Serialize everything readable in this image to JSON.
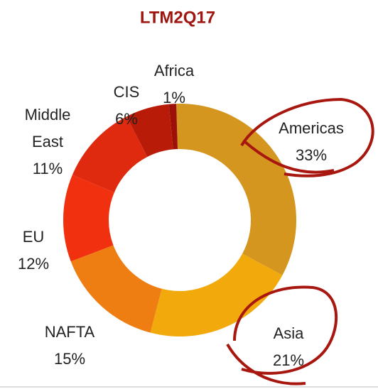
{
  "chart_data": {
    "type": "donut",
    "title": "LTM2Q17",
    "categories": [
      "Americas",
      "Asia",
      "NAFTA",
      "EU",
      "Middle East",
      "CIS",
      "Africa"
    ],
    "values": [
      33,
      21,
      15,
      12,
      11,
      6,
      1
    ],
    "value_labels": [
      "33%",
      "21%",
      "15%",
      "12%",
      "11%",
      "6%",
      "1%"
    ],
    "colors": [
      "#D4961F",
      "#F2A90C",
      "#EE7D12",
      "#F0300E",
      "#DF2A10",
      "#B81C09",
      "#9C1008"
    ]
  }
}
